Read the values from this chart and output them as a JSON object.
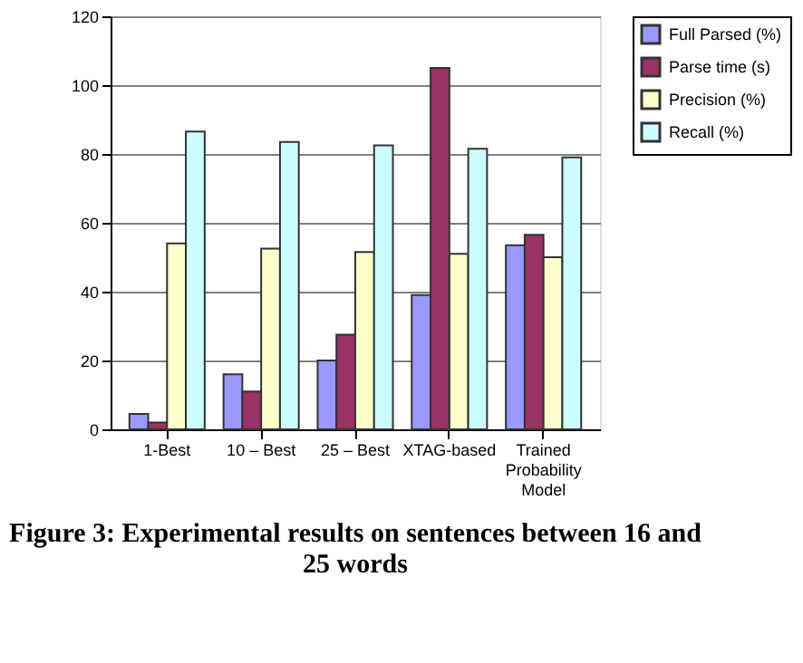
{
  "chart_data": {
    "type": "bar",
    "categories": [
      "1-Best",
      "10 – Best",
      "25 – Best",
      "XTAG-based",
      "Trained Probability Model"
    ],
    "series": [
      {
        "name": "Full Parsed (%)",
        "color": "#9999ff",
        "values": [
          4.5,
          16,
          20,
          39,
          53.5
        ]
      },
      {
        "name": "Parse time (s)",
        "color": "#993366",
        "values": [
          2,
          11,
          27.5,
          105,
          56.5
        ]
      },
      {
        "name": "Precision (%)",
        "color": "#ffffcc",
        "values": [
          54,
          52.5,
          51.5,
          51,
          50
        ]
      },
      {
        "name": "Recall (%)",
        "color": "#ccffff",
        "values": [
          86.5,
          83.5,
          82.5,
          81.5,
          79
        ]
      }
    ],
    "ylim": [
      0,
      120
    ],
    "yticks": [
      0,
      20,
      40,
      60,
      80,
      100,
      120
    ],
    "grid": "y",
    "legend": "right",
    "annotations": [
      "Figure 3: Experimental results on sentences between 16 and 25 words"
    ]
  }
}
